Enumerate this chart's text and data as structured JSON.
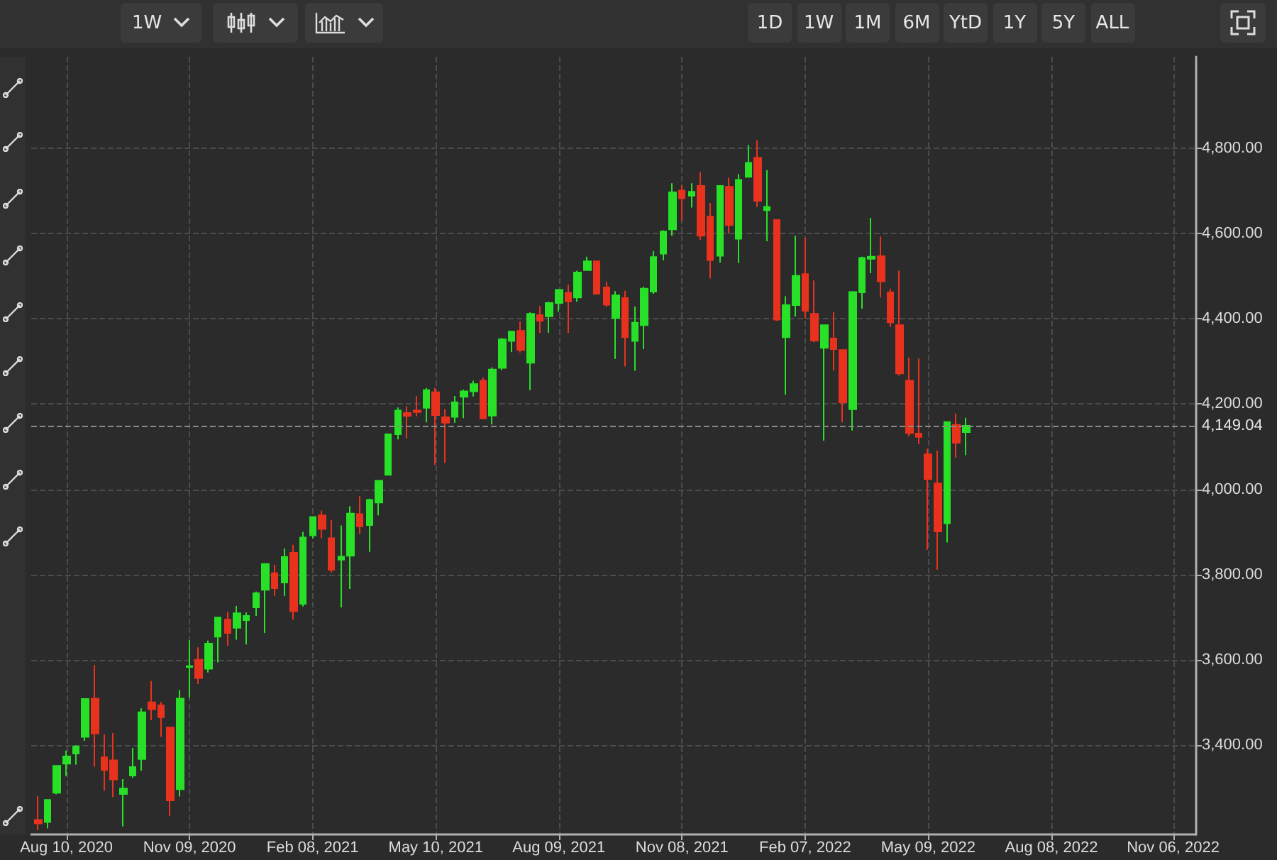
{
  "chart_data": {
    "type": "candlestick",
    "x": [
      "2020-07-20",
      "2020-07-27",
      "2020-08-03",
      "2020-08-10",
      "2020-08-17",
      "2020-08-24",
      "2020-08-31",
      "2020-09-07",
      "2020-09-14",
      "2020-09-21",
      "2020-09-28",
      "2020-10-05",
      "2020-10-12",
      "2020-10-19",
      "2020-10-26",
      "2020-11-02",
      "2020-11-09",
      "2020-11-16",
      "2020-11-23",
      "2020-11-30",
      "2020-12-07",
      "2020-12-14",
      "2020-12-21",
      "2020-12-28",
      "2021-01-04",
      "2021-01-11",
      "2021-01-18",
      "2021-01-25",
      "2021-02-01",
      "2021-02-08",
      "2021-02-15",
      "2021-02-22",
      "2021-03-01",
      "2021-03-08",
      "2021-03-15",
      "2021-03-22",
      "2021-03-29",
      "2021-04-05",
      "2021-04-12",
      "2021-04-19",
      "2021-04-26",
      "2021-05-03",
      "2021-05-10",
      "2021-05-17",
      "2021-05-24",
      "2021-05-31",
      "2021-06-07",
      "2021-06-14",
      "2021-06-21",
      "2021-06-28",
      "2021-07-05",
      "2021-07-12",
      "2021-07-19",
      "2021-07-26",
      "2021-08-02",
      "2021-08-09",
      "2021-08-16",
      "2021-08-23",
      "2021-08-30",
      "2021-09-06",
      "2021-09-13",
      "2021-09-20",
      "2021-09-27",
      "2021-10-04",
      "2021-10-11",
      "2021-10-18",
      "2021-10-25",
      "2021-11-01",
      "2021-11-08",
      "2021-11-15",
      "2021-11-22",
      "2021-11-29",
      "2021-12-06",
      "2021-12-13",
      "2021-12-20",
      "2021-12-27",
      "2022-01-03",
      "2022-01-10",
      "2022-01-17",
      "2022-01-24",
      "2022-01-31",
      "2022-02-07",
      "2022-02-14",
      "2022-02-21",
      "2022-02-28",
      "2022-03-07",
      "2022-03-14",
      "2022-03-21",
      "2022-03-28",
      "2022-04-04",
      "2022-04-11",
      "2022-04-18",
      "2022-04-25",
      "2022-05-02",
      "2022-05-09",
      "2022-05-16",
      "2022-05-23",
      "2022-05-30",
      "2022-06-06"
    ],
    "ohlc": [
      [
        3224,
        3280,
        3200,
        3216
      ],
      [
        3219,
        3272,
        3204,
        3271
      ],
      [
        3288,
        3352,
        3284,
        3351
      ],
      [
        3356,
        3387,
        3327,
        3373
      ],
      [
        3380,
        3399,
        3354,
        3397
      ],
      [
        3419,
        3509,
        3410,
        3508
      ],
      [
        3509,
        3588,
        3349,
        3427
      ],
      [
        3371,
        3425,
        3293,
        3341
      ],
      [
        3364,
        3428,
        3278,
        3319
      ],
      [
        3285,
        3320,
        3209,
        3298
      ],
      [
        3328,
        3393,
        3323,
        3348
      ],
      [
        3367,
        3486,
        3340,
        3477
      ],
      [
        3500,
        3550,
        3458,
        3484
      ],
      [
        3493,
        3501,
        3419,
        3465
      ],
      [
        3441,
        3441,
        3233,
        3270
      ],
      [
        3296,
        3529,
        3279,
        3509
      ],
      [
        3583,
        3646,
        3511,
        3585
      ],
      [
        3600,
        3629,
        3543,
        3557
      ],
      [
        3579,
        3645,
        3570,
        3638
      ],
      [
        3654,
        3699,
        3594,
        3699
      ],
      [
        3694,
        3712,
        3633,
        3663
      ],
      [
        3675,
        3726,
        3647,
        3709
      ],
      [
        3693,
        3711,
        3636,
        3703
      ],
      [
        3723,
        3760,
        3703,
        3756
      ],
      [
        3764,
        3827,
        3663,
        3825
      ],
      [
        3803,
        3823,
        3750,
        3768
      ],
      [
        3781,
        3861,
        3750,
        3841
      ],
      [
        3851,
        3870,
        3694,
        3714
      ],
      [
        3731,
        3900,
        3725,
        3887
      ],
      [
        3892,
        3937,
        3885,
        3935
      ],
      [
        3939,
        3950,
        3885,
        3907
      ],
      [
        3885,
        3928,
        3805,
        3811
      ],
      [
        3835,
        3915,
        3723,
        3842
      ],
      [
        3844,
        3960,
        3766,
        3943
      ],
      [
        3942,
        3984,
        3895,
        3913
      ],
      [
        3916,
        3978,
        3853,
        3975
      ],
      [
        3969,
        4020,
        3939,
        4020
      ],
      [
        4034,
        4130,
        4034,
        4129
      ],
      [
        4129,
        4192,
        4117,
        4185
      ],
      [
        4179,
        4195,
        4119,
        4172
      ],
      [
        4185,
        4219,
        4171,
        4181
      ],
      [
        4191,
        4238,
        4157,
        4233
      ],
      [
        4228,
        4238,
        4057,
        4174
      ],
      [
        4169,
        4188,
        4062,
        4156
      ],
      [
        4170,
        4219,
        4156,
        4204
      ],
      [
        4217,
        4234,
        4167,
        4230
      ],
      [
        4230,
        4255,
        4218,
        4247
      ],
      [
        4255,
        4262,
        4165,
        4166
      ],
      [
        4173,
        4286,
        4152,
        4281
      ],
      [
        4285,
        4355,
        4280,
        4352
      ],
      [
        4348,
        4372,
        4322,
        4370
      ],
      [
        4372,
        4394,
        4321,
        4327
      ],
      [
        4297,
        4415,
        4233,
        4412
      ],
      [
        4409,
        4430,
        4367,
        4395
      ],
      [
        4406,
        4440,
        4367,
        4437
      ],
      [
        4437,
        4470,
        4417,
        4468
      ],
      [
        4461,
        4480,
        4367,
        4441
      ],
      [
        4450,
        4513,
        4440,
        4509
      ],
      [
        4514,
        4546,
        4513,
        4535
      ],
      [
        4535,
        4536,
        4458,
        4459
      ],
      [
        4474,
        4487,
        4428,
        4433
      ],
      [
        4402,
        4465,
        4306,
        4455
      ],
      [
        4449,
        4466,
        4288,
        4357
      ],
      [
        4348,
        4429,
        4278,
        4391
      ],
      [
        4385,
        4475,
        4329,
        4471
      ],
      [
        4464,
        4559,
        4459,
        4545
      ],
      [
        4553,
        4608,
        4537,
        4605
      ],
      [
        4610,
        4718,
        4595,
        4697
      ],
      [
        4701,
        4714,
        4630,
        4683
      ],
      [
        4689,
        4718,
        4661,
        4698
      ],
      [
        4712,
        4744,
        4585,
        4595
      ],
      [
        4640,
        4672,
        4495,
        4538
      ],
      [
        4548,
        4713,
        4532,
        4712
      ],
      [
        4710,
        4731,
        4600,
        4620
      ],
      [
        4588,
        4740,
        4531,
        4726
      ],
      [
        4733,
        4808,
        4733,
        4766
      ],
      [
        4778,
        4819,
        4663,
        4677
      ],
      [
        4655,
        4749,
        4582,
        4663
      ],
      [
        4632,
        4632,
        4395,
        4398
      ],
      [
        4357,
        4453,
        4222,
        4432
      ],
      [
        4432,
        4595,
        4405,
        4501
      ],
      [
        4505,
        4590,
        4401,
        4419
      ],
      [
        4412,
        4490,
        4345,
        4349
      ],
      [
        4332,
        4385,
        4114,
        4385
      ],
      [
        4354,
        4416,
        4279,
        4329
      ],
      [
        4327,
        4327,
        4157,
        4204
      ],
      [
        4188,
        4465,
        4138,
        4463
      ],
      [
        4462,
        4546,
        4424,
        4543
      ],
      [
        4541,
        4637,
        4507,
        4546
      ],
      [
        4547,
        4593,
        4450,
        4488
      ],
      [
        4462,
        4471,
        4381,
        4392
      ],
      [
        4385,
        4513,
        4267,
        4272
      ],
      [
        4255,
        4309,
        4124,
        4132
      ],
      [
        4131,
        4307,
        4106,
        4123
      ],
      [
        4082,
        4095,
        3858,
        4024
      ],
      [
        4014,
        4091,
        3811,
        3901
      ],
      [
        3920,
        4159,
        3875,
        4158
      ],
      [
        4151,
        4178,
        4074,
        4109
      ],
      [
        4134,
        4168,
        4080,
        4149
      ]
    ],
    "colors": [
      "#e8321e",
      "#27e027",
      "#27e027",
      "#27e027",
      "#27e027",
      "#27e027",
      "#e8321e",
      "#e8321e",
      "#e8321e",
      "#27e027",
      "#27e027",
      "#27e027",
      "#e8321e",
      "#e8321e",
      "#e8321e",
      "#27e027",
      "#27e027",
      "#e8321e",
      "#27e027",
      "#27e027",
      "#e8321e",
      "#27e027",
      "#27e027",
      "#27e027",
      "#27e027",
      "#e8321e",
      "#27e027",
      "#e8321e",
      "#27e027",
      "#27e027",
      "#e8321e",
      "#e8321e",
      "#27e027",
      "#27e027",
      "#e8321e",
      "#27e027",
      "#27e027",
      "#27e027",
      "#27e027",
      "#e8321e",
      "#e8321e",
      "#27e027",
      "#e8321e",
      "#e8321e",
      "#27e027",
      "#27e027",
      "#27e027",
      "#e8321e",
      "#27e027",
      "#27e027",
      "#27e027",
      "#e8321e",
      "#27e027",
      "#e8321e",
      "#27e027",
      "#27e027",
      "#e8321e",
      "#27e027",
      "#27e027",
      "#e8321e",
      "#e8321e",
      "#27e027",
      "#e8321e",
      "#27e027",
      "#27e027",
      "#27e027",
      "#27e027",
      "#27e027",
      "#e8321e",
      "#27e027",
      "#e8321e",
      "#e8321e",
      "#27e027",
      "#e8321e",
      "#27e027",
      "#27e027",
      "#e8321e",
      "#27e027",
      "#e8321e",
      "#27e027",
      "#27e027",
      "#e8321e",
      "#e8321e",
      "#27e027",
      "#e8321e",
      "#e8321e",
      "#27e027",
      "#27e027",
      "#27e027",
      "#e8321e",
      "#e8321e",
      "#e8321e",
      "#e8321e",
      "#e8321e",
      "#e8321e",
      "#e8321e",
      "#27e027",
      "#e8321e",
      "#27e027"
    ],
    "xlim": [
      "2020-07-15",
      "2022-11-23"
    ],
    "xticks": [
      {
        "value": "2020-08-10",
        "label": "Aug 10, 2020"
      },
      {
        "value": "2020-11-09",
        "label": "Nov 09, 2020"
      },
      {
        "value": "2021-02-08",
        "label": "Feb 08, 2021"
      },
      {
        "value": "2021-05-10",
        "label": "May 10, 2021"
      },
      {
        "value": "2021-08-09",
        "label": "Aug 09, 2021"
      },
      {
        "value": "2021-11-08",
        "label": "Nov 08, 2021"
      },
      {
        "value": "2022-02-07",
        "label": "Feb 07, 2022"
      },
      {
        "value": "2022-05-09",
        "label": "May 09, 2022"
      },
      {
        "value": "2022-08-08",
        "label": "Aug 08, 2022"
      },
      {
        "value": "2022-11-06",
        "label": "Nov 06, 2022"
      }
    ],
    "ylim": [
      3190,
      5015
    ],
    "yticks": [
      {
        "value": 3400,
        "label": "3,400.00"
      },
      {
        "value": 3600,
        "label": "3,600.00"
      },
      {
        "value": 3800,
        "label": "3,800.00"
      },
      {
        "value": 4000,
        "label": "4,000.00"
      },
      {
        "value": 4200,
        "label": "4,200.00"
      },
      {
        "value": 4400,
        "label": "4,400.00"
      },
      {
        "value": 4600,
        "label": "4,600.00"
      },
      {
        "value": 4800,
        "label": "4,800.00"
      }
    ],
    "ref_lines": [
      {
        "axis": "y",
        "value": 4149.04,
        "label": "4,149.04",
        "color": "#8a8a8a",
        "line_style": "dashed"
      }
    ],
    "annotations": [
      "1W",
      "1D",
      "1W",
      "1M",
      "6M",
      "YtD",
      "1Y",
      "5Y",
      "ALL"
    ],
    "grid": true
  }
}
